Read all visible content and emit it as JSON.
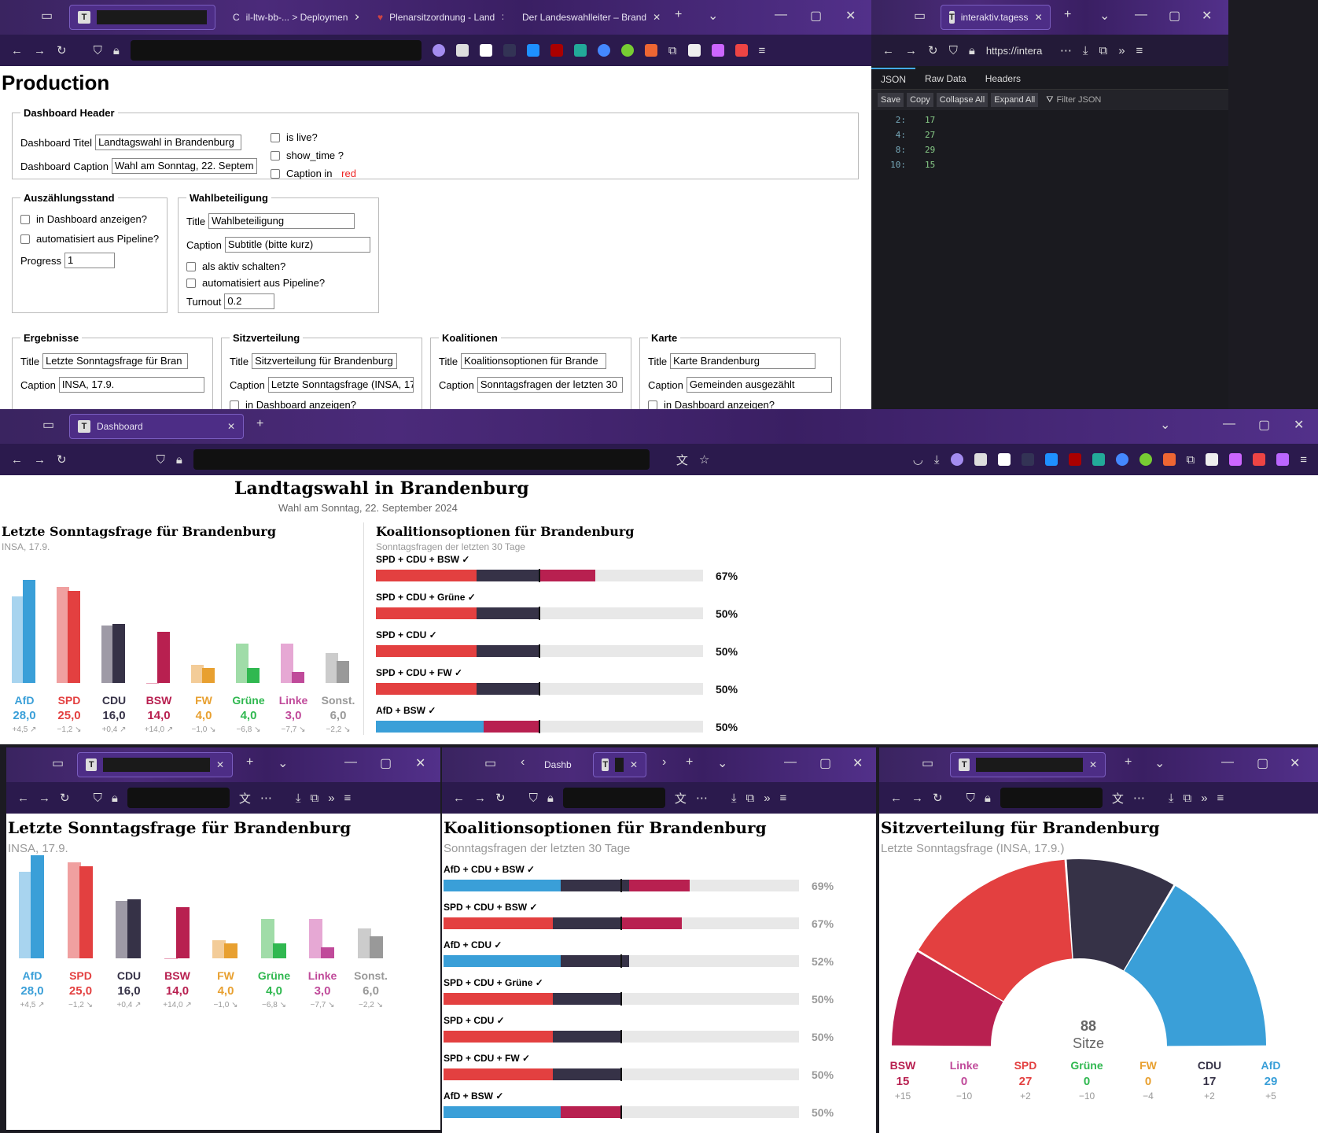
{
  "colors": {
    "AfD": "#3a9fd8",
    "AfD_light": "#a8d4ef",
    "SPD": "#e34040",
    "SPD_light": "#f0a0a0",
    "CDU": "#363247",
    "CDU_light": "#9e9aa6",
    "BSW": "#b82050",
    "BSW_light": "#e8a0b8",
    "FW": "#e8a030",
    "FW_light": "#f3cc98",
    "Gruene": "#30b850",
    "Gruene_light": "#a0dca8",
    "Linke": "#c04a9a",
    "Linke_light": "#e6a8d4",
    "Sonst": "#999999",
    "Sonst_light": "#cccccc"
  },
  "win1": {
    "tabs": [
      "",
      "il-ltw-bb-... > Deploymen",
      "Plenarsitzordnung - Land",
      "Der Landeswahlleiter – Brand"
    ],
    "page_title": "Production",
    "header": {
      "legend": "Dashboard Header",
      "title_label": "Dashboard Titel",
      "title_value": "Landtagswahl in Brandenburg",
      "caption_label": "Dashboard Caption",
      "caption_value": "Wahl am Sonntag, 22. Septem",
      "is_live": "is live?",
      "show_time": "show_time ?",
      "caption_red_pre": "Caption in ",
      "caption_red": "red"
    },
    "ausz": {
      "legend": "Auszählungsstand",
      "show": "in Dashboard anzeigen?",
      "auto": "automatisiert aus Pipeline?",
      "progress_label": "Progress",
      "progress_value": "1"
    },
    "wahl": {
      "legend": "Wahlbeteiligung",
      "title_label": "Title",
      "title_value": "Wahlbeteiligung",
      "caption_label": "Caption",
      "caption_value": "Subtitle (bitte kurz)",
      "aktiv": "als aktiv schalten?",
      "auto": "automatisiert aus Pipeline?",
      "turnout_label": "Turnout",
      "turnout_value": "0.2"
    },
    "ergeb": {
      "legend": "Ergebnisse",
      "title_label": "Title",
      "title_value": "Letzte Sonntagsfrage für Bran",
      "caption_label": "Caption",
      "caption_value": "INSA, 17.9."
    },
    "sitz": {
      "legend": "Sitzverteilung",
      "title_label": "Title",
      "title_value": "Sitzverteilung für Brandenburg",
      "caption_label": "Caption",
      "caption_value": "Letzte Sonntagsfrage (INSA, 17",
      "show": "in Dashboard anzeigen?"
    },
    "koal": {
      "legend": "Koalitionen",
      "title_label": "Title",
      "title_value": "Koalitionsoptionen für Brande",
      "caption_label": "Caption",
      "caption_value": "Sonntagsfragen der letzten 30"
    },
    "karte": {
      "legend": "Karte",
      "title_label": "Title",
      "title_value": "Karte Brandenburg",
      "caption_label": "Caption",
      "caption_value": "Gemeinden ausgezählt",
      "show": "in Dashboard anzeigen?"
    }
  },
  "win2": {
    "tab": "interaktiv.tagess",
    "url": "https://intera",
    "tabs": [
      "JSON",
      "Raw Data",
      "Headers"
    ],
    "buttons": [
      "Save",
      "Copy",
      "Collapse All",
      "Expand All"
    ],
    "filter": "Filter JSON",
    "rows": [
      {
        "k": "2:",
        "v": "17"
      },
      {
        "k": "4:",
        "v": "27"
      },
      {
        "k": "8:",
        "v": "29"
      },
      {
        "k": "10:",
        "v": "15"
      }
    ]
  },
  "win3": {
    "tab": "Dashboard",
    "title": "Landtagswahl in Brandenburg",
    "caption": "Wahl am Sonntag, 22. September 2024",
    "koal_title": "Koalitionsoptionen für Brandenburg",
    "koal_caption": "Sonntagsfragen der letzten 30 Tage"
  },
  "ergebnis": {
    "title": "Letzte Sonntagsfrage für Brandenburg",
    "caption": "INSA, 17.9.",
    "parties": [
      {
        "name": "AfD",
        "key": "AfD",
        "value": "28,0",
        "prev": 23.5,
        "cur": 28.0,
        "diff": "+4,5 ↗"
      },
      {
        "name": "SPD",
        "key": "SPD",
        "value": "25,0",
        "prev": 26.2,
        "cur": 25.0,
        "diff": "−1,2 ↘"
      },
      {
        "name": "CDU",
        "key": "CDU",
        "value": "16,0",
        "prev": 15.6,
        "cur": 16.0,
        "diff": "+0,4 ↗"
      },
      {
        "name": "BSW",
        "key": "BSW",
        "value": "14,0",
        "prev": 0,
        "cur": 14.0,
        "diff": "+14,0 ↗"
      },
      {
        "name": "FW",
        "key": "FW",
        "value": "4,0",
        "prev": 5.0,
        "cur": 4.0,
        "diff": "−1,0 ↘"
      },
      {
        "name": "Grüne",
        "key": "Gruene",
        "value": "4,0",
        "prev": 10.8,
        "cur": 4.0,
        "diff": "−6,8 ↘"
      },
      {
        "name": "Linke",
        "key": "Linke",
        "value": "3,0",
        "prev": 10.7,
        "cur": 3.0,
        "diff": "−7,7 ↘"
      },
      {
        "name": "Sonst.",
        "key": "Sonst",
        "value": "6,0",
        "prev": 8.2,
        "cur": 6.0,
        "diff": "−2,2 ↘"
      }
    ]
  },
  "koalitionen_short": [
    {
      "label": "SPD + CDU + BSW ✓",
      "pct": "67%",
      "parts": [
        [
          "SPD",
          27
        ],
        [
          "CDU",
          17
        ],
        [
          "BSW",
          15
        ]
      ]
    },
    {
      "label": "SPD + CDU + Grüne ✓",
      "pct": "50%",
      "parts": [
        [
          "SPD",
          27
        ],
        [
          "CDU",
          17
        ]
      ]
    },
    {
      "label": "SPD + CDU ✓",
      "pct": "50%",
      "parts": [
        [
          "SPD",
          27
        ],
        [
          "CDU",
          17
        ]
      ]
    },
    {
      "label": "SPD + CDU + FW ✓",
      "pct": "50%",
      "parts": [
        [
          "SPD",
          27
        ],
        [
          "CDU",
          17
        ]
      ]
    },
    {
      "label": "AfD + BSW ✓",
      "pct": "50%",
      "parts": [
        [
          "AfD",
          29
        ],
        [
          "BSW",
          15
        ]
      ]
    }
  ],
  "koalitionen_full": [
    {
      "label": "AfD + CDU + BSW ✓",
      "pct": "69%",
      "parts": [
        [
          "AfD",
          29
        ],
        [
          "CDU",
          17
        ],
        [
          "BSW",
          15
        ]
      ]
    },
    {
      "label": "SPD + CDU + BSW ✓",
      "pct": "67%",
      "parts": [
        [
          "SPD",
          27
        ],
        [
          "CDU",
          17
        ],
        [
          "BSW",
          15
        ]
      ]
    },
    {
      "label": "AfD + CDU ✓",
      "pct": "52%",
      "parts": [
        [
          "AfD",
          29
        ],
        [
          "CDU",
          17
        ]
      ]
    },
    {
      "label": "SPD + CDU + Grüne ✓",
      "pct": "50%",
      "parts": [
        [
          "SPD",
          27
        ],
        [
          "CDU",
          17
        ]
      ]
    },
    {
      "label": "SPD + CDU ✓",
      "pct": "50%",
      "parts": [
        [
          "SPD",
          27
        ],
        [
          "CDU",
          17
        ]
      ]
    },
    {
      "label": "SPD + CDU + FW ✓",
      "pct": "50%",
      "parts": [
        [
          "SPD",
          27
        ],
        [
          "CDU",
          17
        ]
      ]
    },
    {
      "label": "AfD + BSW ✓",
      "pct": "50%",
      "parts": [
        [
          "AfD",
          29
        ],
        [
          "BSW",
          15
        ]
      ]
    }
  ],
  "win5": {
    "title": "Koalitionsoptionen für Brandenburg",
    "caption": "Sonntagsfragen der letzten 30 Tage",
    "tab": "Dashb"
  },
  "sitz": {
    "title": "Sitzverteilung für Brandenburg",
    "caption": "Letzte Sonntagsfrage (INSA, 17.9.)",
    "total": "88",
    "total_label": "Sitze",
    "parties": [
      {
        "name": "BSW",
        "key": "BSW",
        "seats": 15,
        "seats_text": "15",
        "diff": "+15"
      },
      {
        "name": "Linke",
        "key": "Linke",
        "seats": 0,
        "seats_text": "0",
        "diff": "−10"
      },
      {
        "name": "SPD",
        "key": "SPD",
        "seats": 27,
        "seats_text": "27",
        "diff": "+2"
      },
      {
        "name": "Grüne",
        "key": "Gruene",
        "seats": 0,
        "seats_text": "0",
        "diff": "−10"
      },
      {
        "name": "FW",
        "key": "FW",
        "seats": 0,
        "seats_text": "0",
        "diff": "−4"
      },
      {
        "name": "CDU",
        "key": "CDU",
        "seats": 17,
        "seats_text": "17",
        "diff": "+2"
      },
      {
        "name": "AfD",
        "key": "AfD",
        "seats": 29,
        "seats_text": "29",
        "diff": "+5"
      }
    ]
  },
  "chart_data": [
    {
      "type": "bar",
      "title": "Letzte Sonntagsfrage für Brandenburg",
      "subtitle": "INSA, 17.9.",
      "categories": [
        "AfD",
        "SPD",
        "CDU",
        "BSW",
        "FW",
        "Grüne",
        "Linke",
        "Sonst."
      ],
      "series": [
        {
          "values": [
            23.5,
            26.2,
            15.6,
            0,
            5.0,
            10.8,
            10.7,
            8.2
          ]
        },
        {
          "values": [
            28.0,
            25.0,
            16.0,
            14.0,
            4.0,
            4.0,
            3.0,
            6.0
          ]
        }
      ]
    },
    {
      "type": "bar",
      "title": "Koalitionsoptionen für Brandenburg",
      "subtitle": "Sonntagsfragen der letzten 30 Tage",
      "categories": [
        "AfD + CDU + BSW",
        "SPD + CDU + BSW",
        "AfD + CDU",
        "SPD + CDU + Grüne",
        "SPD + CDU",
        "SPD + CDU + FW",
        "AfD + BSW"
      ],
      "values": [
        69,
        67,
        52,
        50,
        50,
        50,
        50
      ]
    },
    {
      "type": "pie",
      "title": "Sitzverteilung für Brandenburg",
      "subtitle": "Letzte Sonntagsfrage (INSA, 17.9.)",
      "categories": [
        "BSW",
        "SPD",
        "CDU",
        "AfD"
      ],
      "values": [
        15,
        27,
        17,
        29
      ]
    }
  ]
}
